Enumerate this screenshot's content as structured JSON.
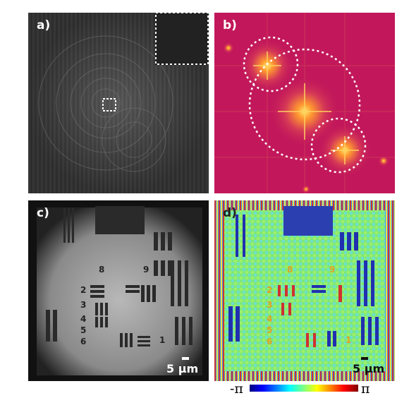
{
  "panels": {
    "a": {
      "label": "a)"
    },
    "b": {
      "label": "b)"
    },
    "c": {
      "label": "c)",
      "scale_text": "5 µm",
      "numbers": [
        "8",
        "9",
        "2",
        "3",
        "4",
        "5",
        "6",
        "1"
      ]
    },
    "d": {
      "label": "d)",
      "scale_text": "5 µm",
      "numbers": [
        "8",
        "9",
        "2",
        "3",
        "4",
        "5",
        "6",
        "1"
      ]
    }
  },
  "colorbar": {
    "min_label": "-π",
    "max_label": "π"
  }
}
